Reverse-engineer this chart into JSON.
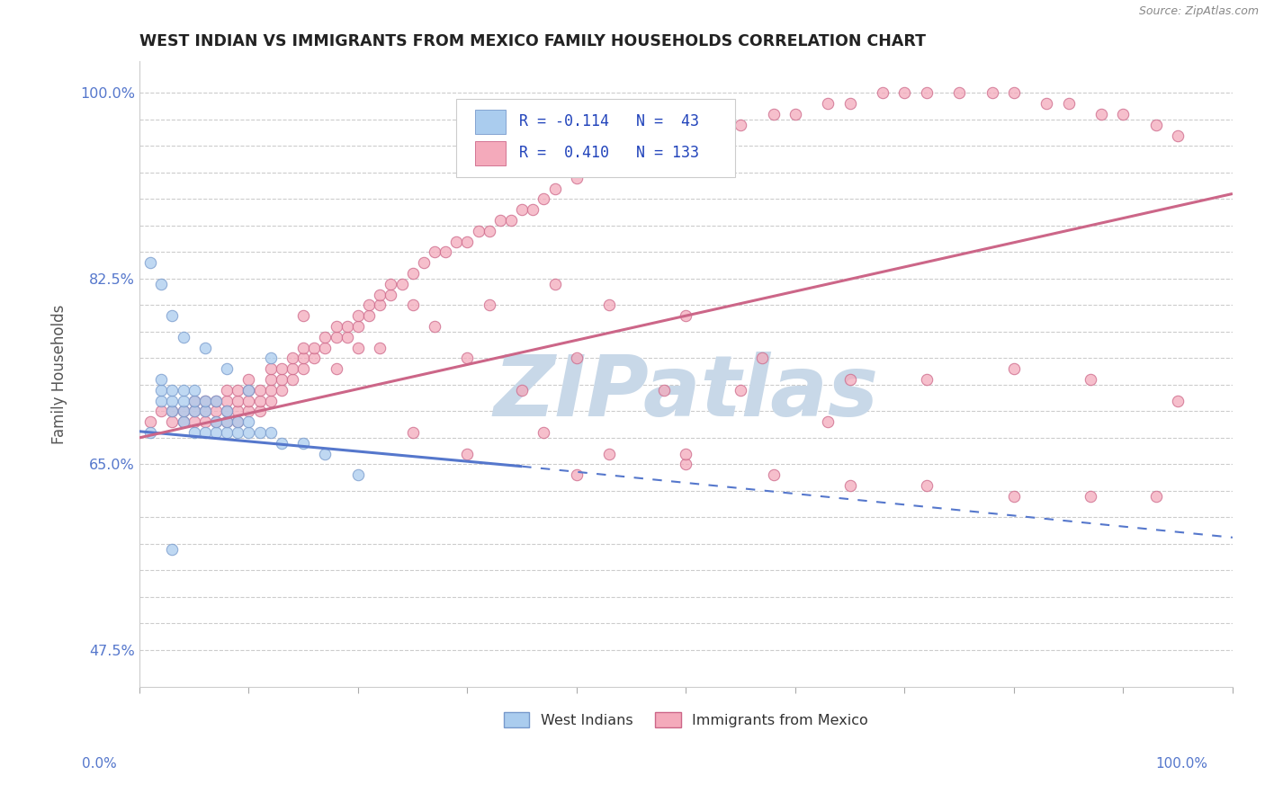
{
  "title": "WEST INDIAN VS IMMIGRANTS FROM MEXICO FAMILY HOUSEHOLDS CORRELATION CHART",
  "source": "Source: ZipAtlas.com",
  "ylabel": "Family Households",
  "watermark": "ZIPatlas",
  "west_indian": {
    "R": -0.114,
    "N": 43,
    "color": "#aaccee",
    "edge_color": "#7799cc",
    "line_color": "#5577cc",
    "x": [
      0.01,
      0.02,
      0.02,
      0.02,
      0.03,
      0.03,
      0.03,
      0.04,
      0.04,
      0.04,
      0.04,
      0.05,
      0.05,
      0.05,
      0.05,
      0.06,
      0.06,
      0.06,
      0.07,
      0.07,
      0.07,
      0.08,
      0.08,
      0.08,
      0.09,
      0.09,
      0.1,
      0.1,
      0.11,
      0.12,
      0.13,
      0.15,
      0.17,
      0.01,
      0.02,
      0.03,
      0.04,
      0.06,
      0.08,
      0.1,
      0.12,
      0.2,
      0.03
    ],
    "y": [
      0.68,
      0.71,
      0.72,
      0.73,
      0.7,
      0.71,
      0.72,
      0.69,
      0.7,
      0.71,
      0.72,
      0.68,
      0.7,
      0.71,
      0.72,
      0.68,
      0.7,
      0.71,
      0.68,
      0.69,
      0.71,
      0.68,
      0.69,
      0.7,
      0.68,
      0.69,
      0.68,
      0.69,
      0.68,
      0.68,
      0.67,
      0.67,
      0.66,
      0.84,
      0.82,
      0.79,
      0.77,
      0.76,
      0.74,
      0.72,
      0.75,
      0.64,
      0.57
    ]
  },
  "mexico": {
    "R": 0.41,
    "N": 133,
    "color": "#f4aabb",
    "edge_color": "#cc6688",
    "line_color": "#cc6688",
    "x": [
      0.01,
      0.02,
      0.03,
      0.03,
      0.04,
      0.04,
      0.05,
      0.05,
      0.05,
      0.06,
      0.06,
      0.06,
      0.07,
      0.07,
      0.07,
      0.08,
      0.08,
      0.08,
      0.08,
      0.09,
      0.09,
      0.09,
      0.09,
      0.1,
      0.1,
      0.1,
      0.1,
      0.11,
      0.11,
      0.11,
      0.12,
      0.12,
      0.12,
      0.12,
      0.13,
      0.13,
      0.13,
      0.14,
      0.14,
      0.14,
      0.15,
      0.15,
      0.15,
      0.16,
      0.16,
      0.17,
      0.17,
      0.18,
      0.18,
      0.19,
      0.19,
      0.2,
      0.2,
      0.21,
      0.21,
      0.22,
      0.22,
      0.23,
      0.23,
      0.24,
      0.25,
      0.26,
      0.27,
      0.28,
      0.29,
      0.3,
      0.31,
      0.32,
      0.33,
      0.34,
      0.35,
      0.36,
      0.37,
      0.38,
      0.4,
      0.42,
      0.44,
      0.46,
      0.48,
      0.5,
      0.52,
      0.55,
      0.58,
      0.6,
      0.63,
      0.65,
      0.68,
      0.7,
      0.72,
      0.75,
      0.78,
      0.8,
      0.83,
      0.85,
      0.88,
      0.9,
      0.93,
      0.95,
      0.55,
      0.63,
      0.48,
      0.4,
      0.3,
      0.35,
      0.25,
      0.2,
      0.15,
      0.18,
      0.22,
      0.27,
      0.32,
      0.38,
      0.43,
      0.5,
      0.57,
      0.65,
      0.72,
      0.8,
      0.87,
      0.95,
      0.43,
      0.37,
      0.5,
      0.58,
      0.65,
      0.72,
      0.8,
      0.87,
      0.93,
      0.25,
      0.3,
      0.4,
      0.5
    ],
    "y": [
      0.69,
      0.7,
      0.69,
      0.7,
      0.69,
      0.7,
      0.69,
      0.7,
      0.71,
      0.69,
      0.7,
      0.71,
      0.69,
      0.7,
      0.71,
      0.69,
      0.7,
      0.71,
      0.72,
      0.69,
      0.7,
      0.71,
      0.72,
      0.7,
      0.71,
      0.72,
      0.73,
      0.7,
      0.71,
      0.72,
      0.71,
      0.72,
      0.73,
      0.74,
      0.72,
      0.73,
      0.74,
      0.73,
      0.74,
      0.75,
      0.74,
      0.75,
      0.76,
      0.75,
      0.76,
      0.76,
      0.77,
      0.77,
      0.78,
      0.77,
      0.78,
      0.78,
      0.79,
      0.79,
      0.8,
      0.8,
      0.81,
      0.81,
      0.82,
      0.82,
      0.83,
      0.84,
      0.85,
      0.85,
      0.86,
      0.86,
      0.87,
      0.87,
      0.88,
      0.88,
      0.89,
      0.89,
      0.9,
      0.91,
      0.92,
      0.93,
      0.93,
      0.94,
      0.95,
      0.96,
      0.97,
      0.97,
      0.98,
      0.98,
      0.99,
      0.99,
      1.0,
      1.0,
      1.0,
      1.0,
      1.0,
      1.0,
      0.99,
      0.99,
      0.98,
      0.98,
      0.97,
      0.96,
      0.72,
      0.69,
      0.72,
      0.75,
      0.75,
      0.72,
      0.8,
      0.76,
      0.79,
      0.74,
      0.76,
      0.78,
      0.8,
      0.82,
      0.8,
      0.79,
      0.75,
      0.73,
      0.73,
      0.74,
      0.73,
      0.71,
      0.66,
      0.68,
      0.65,
      0.64,
      0.63,
      0.63,
      0.62,
      0.62,
      0.62,
      0.68,
      0.66,
      0.64,
      0.66
    ]
  },
  "ylim": [
    0.44,
    1.03
  ],
  "xlim": [
    0.0,
    1.0
  ],
  "blue_line": [
    0.0,
    0.681,
    0.35,
    0.648
  ],
  "blue_dash_line": [
    0.35,
    0.648,
    1.0,
    0.581
  ],
  "pink_line": [
    0.0,
    0.675,
    1.0,
    0.905
  ],
  "ytick_labeled": {
    "0.475": "47.5%",
    "0.65": "65.0%",
    "0.825": "82.5%",
    "1.0": "100.0%"
  },
  "background_color": "#ffffff",
  "title_fontsize": 12.5,
  "watermark_color": "#c8d8e8",
  "tick_color_blue": "#5577cc"
}
